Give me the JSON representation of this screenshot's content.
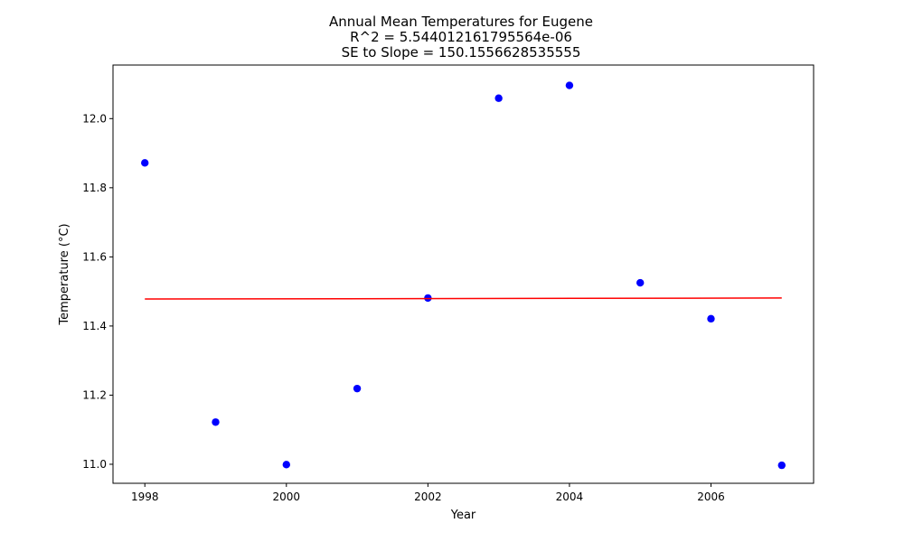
{
  "chart_data": {
    "type": "scatter",
    "title_lines": [
      "Annual Mean Temperatures for Eugene",
      "R^2 = 5.544012161795564e-06",
      "SE to Slope = 150.1556628535555"
    ],
    "xlabel": "Year",
    "ylabel": "Temperature (°C)",
    "xlim": [
      1997.55,
      2007.45
    ],
    "ylim": [
      10.945,
      12.155
    ],
    "x_ticks": [
      1998,
      2000,
      2002,
      2004,
      2006
    ],
    "y_ticks": [
      11.0,
      11.2,
      11.4,
      11.6,
      11.8,
      12.0
    ],
    "x_tick_labels": [
      "1998",
      "2000",
      "2002",
      "2004",
      "2006"
    ],
    "y_tick_labels": [
      "11.0",
      "11.2",
      "11.4",
      "11.6",
      "11.8",
      "12.0"
    ],
    "grid": false,
    "series": [
      {
        "kind": "scatter",
        "color": "#0000ff",
        "x": [
          1998,
          1999,
          2000,
          2001,
          2002,
          2003,
          2004,
          2005,
          2006,
          2007
        ],
        "y": [
          11.872,
          11.122,
          10.999,
          11.219,
          11.481,
          12.059,
          12.096,
          11.525,
          11.421,
          10.997
        ]
      },
      {
        "kind": "line",
        "color": "#ff0000",
        "x": [
          1998,
          2007
        ],
        "y": [
          11.478,
          11.481
        ]
      }
    ]
  }
}
